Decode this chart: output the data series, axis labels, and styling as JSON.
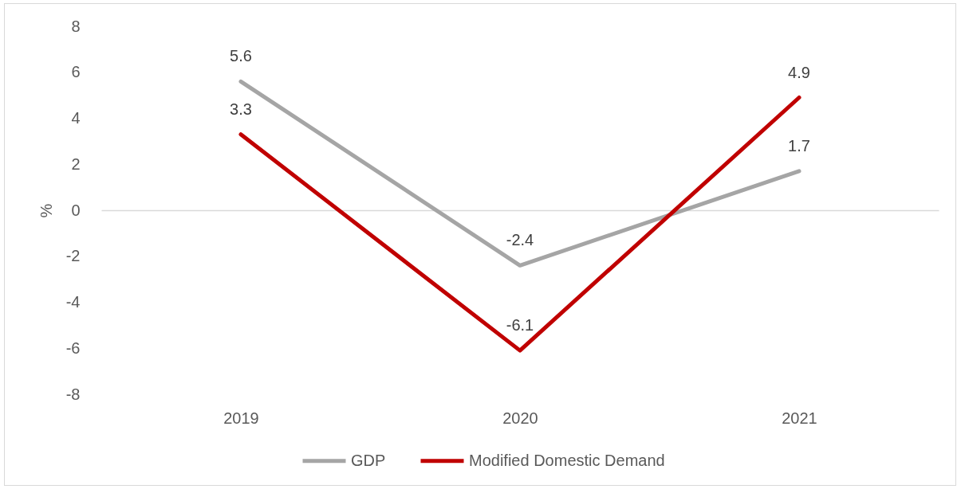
{
  "chart_data": {
    "type": "line",
    "ylabel": "%",
    "categories": [
      "2019",
      "2020",
      "2021"
    ],
    "series": [
      {
        "name": "GDP",
        "color": "#a5a5a5",
        "values": [
          5.6,
          -2.4,
          1.7
        ]
      },
      {
        "name": "Modified Domestic Demand",
        "color": "#c00000",
        "values": [
          3.3,
          -6.1,
          4.9
        ]
      }
    ],
    "ylim": [
      -8,
      8
    ],
    "yticks": [
      -8,
      -6,
      -4,
      -2,
      0,
      2,
      4,
      6,
      8
    ],
    "data_labels": true,
    "legend": "bottom"
  }
}
